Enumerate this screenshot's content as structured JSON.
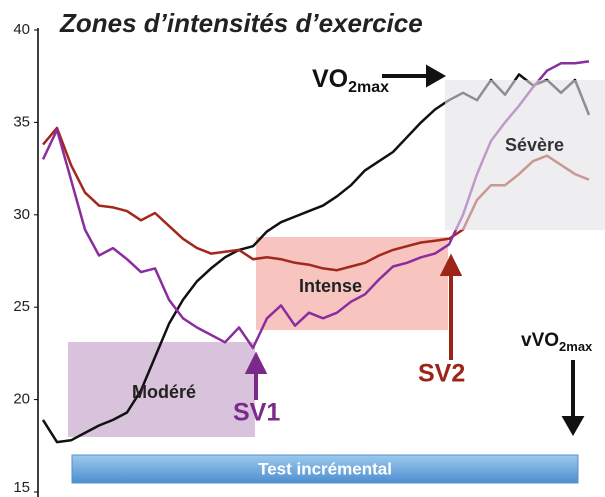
{
  "chart_data": {
    "type": "line",
    "title": "Zones d’intensités d’exercice",
    "categories": [
      null,
      null,
      null,
      null,
      null,
      null,
      null,
      null,
      null,
      null,
      null,
      null,
      null,
      null,
      null,
      null,
      null,
      null,
      null,
      null,
      null,
      null,
      null,
      null,
      null,
      null,
      null,
      null,
      null,
      null,
      null,
      null,
      null,
      null,
      null,
      null,
      null,
      null,
      null,
      null
    ],
    "series": [
      {
        "color": "#111111",
        "values": [
          18.9,
          17.7,
          17.8,
          18.2,
          18.6,
          18.9,
          19.3,
          20.5,
          22.3,
          24.1,
          25.4,
          26.4,
          27.1,
          27.7,
          28.1,
          28.3,
          29.1,
          29.6,
          29.9,
          30.2,
          30.5,
          31.0,
          31.6,
          32.4,
          32.9,
          33.4,
          34.2,
          35.0,
          35.7,
          36.2,
          36.6,
          36.2,
          37.3,
          36.5,
          37.6,
          37.0,
          37.3,
          36.6,
          37.3,
          35.4
        ]
      },
      {
        "color": "#a3271b",
        "values": [
          33.8,
          34.7,
          32.7,
          31.2,
          30.5,
          30.4,
          30.2,
          29.7,
          30.1,
          29.4,
          28.7,
          28.2,
          27.9,
          28.0,
          28.1,
          27.6,
          27.7,
          27.6,
          27.4,
          27.3,
          27.1,
          27.0,
          27.2,
          27.4,
          27.8,
          28.1,
          28.3,
          28.5,
          28.6,
          28.7,
          29.2,
          30.8,
          31.6,
          31.6,
          32.2,
          32.9,
          33.2,
          32.7,
          32.2,
          31.9
        ]
      },
      {
        "color": "#8a2d9e",
        "values": [
          33.0,
          34.6,
          31.9,
          29.2,
          27.8,
          28.2,
          27.6,
          26.9,
          27.1,
          25.4,
          24.4,
          23.9,
          23.5,
          23.1,
          23.9,
          22.8,
          24.4,
          25.1,
          24.0,
          24.7,
          24.4,
          24.7,
          25.3,
          25.7,
          26.5,
          27.2,
          27.4,
          27.7,
          27.9,
          28.4,
          30.0,
          32.2,
          34.0,
          35.0,
          35.9,
          36.9,
          37.8,
          38.2,
          38.2,
          38.3
        ]
      }
    ],
    "ylim": [
      15,
      40
    ],
    "yticks": [
      15,
      20,
      25,
      30,
      35,
      40
    ],
    "grid": false,
    "annotations": {
      "vo2max": "VO",
      "vo2max_sub": "2max",
      "vvo2max": "vVO",
      "vvo2max_sub": "2max",
      "moderate": "Modéré",
      "intense": "Intense",
      "severe": "Sévère",
      "sv1": "SV1",
      "sv2": "SV2",
      "test": "Test incrémental"
    }
  }
}
